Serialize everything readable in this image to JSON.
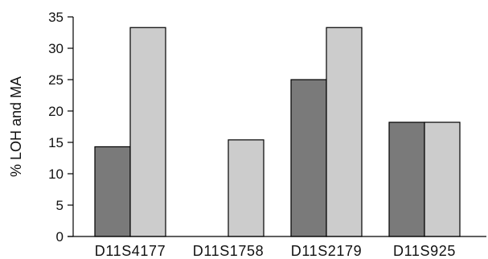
{
  "chart_data": {
    "type": "bar",
    "title": "",
    "xlabel": "",
    "ylabel": "% LOH and MA",
    "ylim": [
      0,
      35
    ],
    "yticks": [
      0,
      5,
      10,
      15,
      20,
      25,
      30,
      35
    ],
    "grid": false,
    "legend": "none",
    "categories": [
      "D11S4177",
      "D11S1758",
      "D11S2179",
      "D11S925"
    ],
    "series": [
      {
        "color": "#7a7a7a",
        "values": [
          14.3,
          0,
          25,
          18.2
        ]
      },
      {
        "color": "#cccccc",
        "values": [
          33.3,
          15.4,
          33.3,
          18.2
        ]
      }
    ]
  }
}
